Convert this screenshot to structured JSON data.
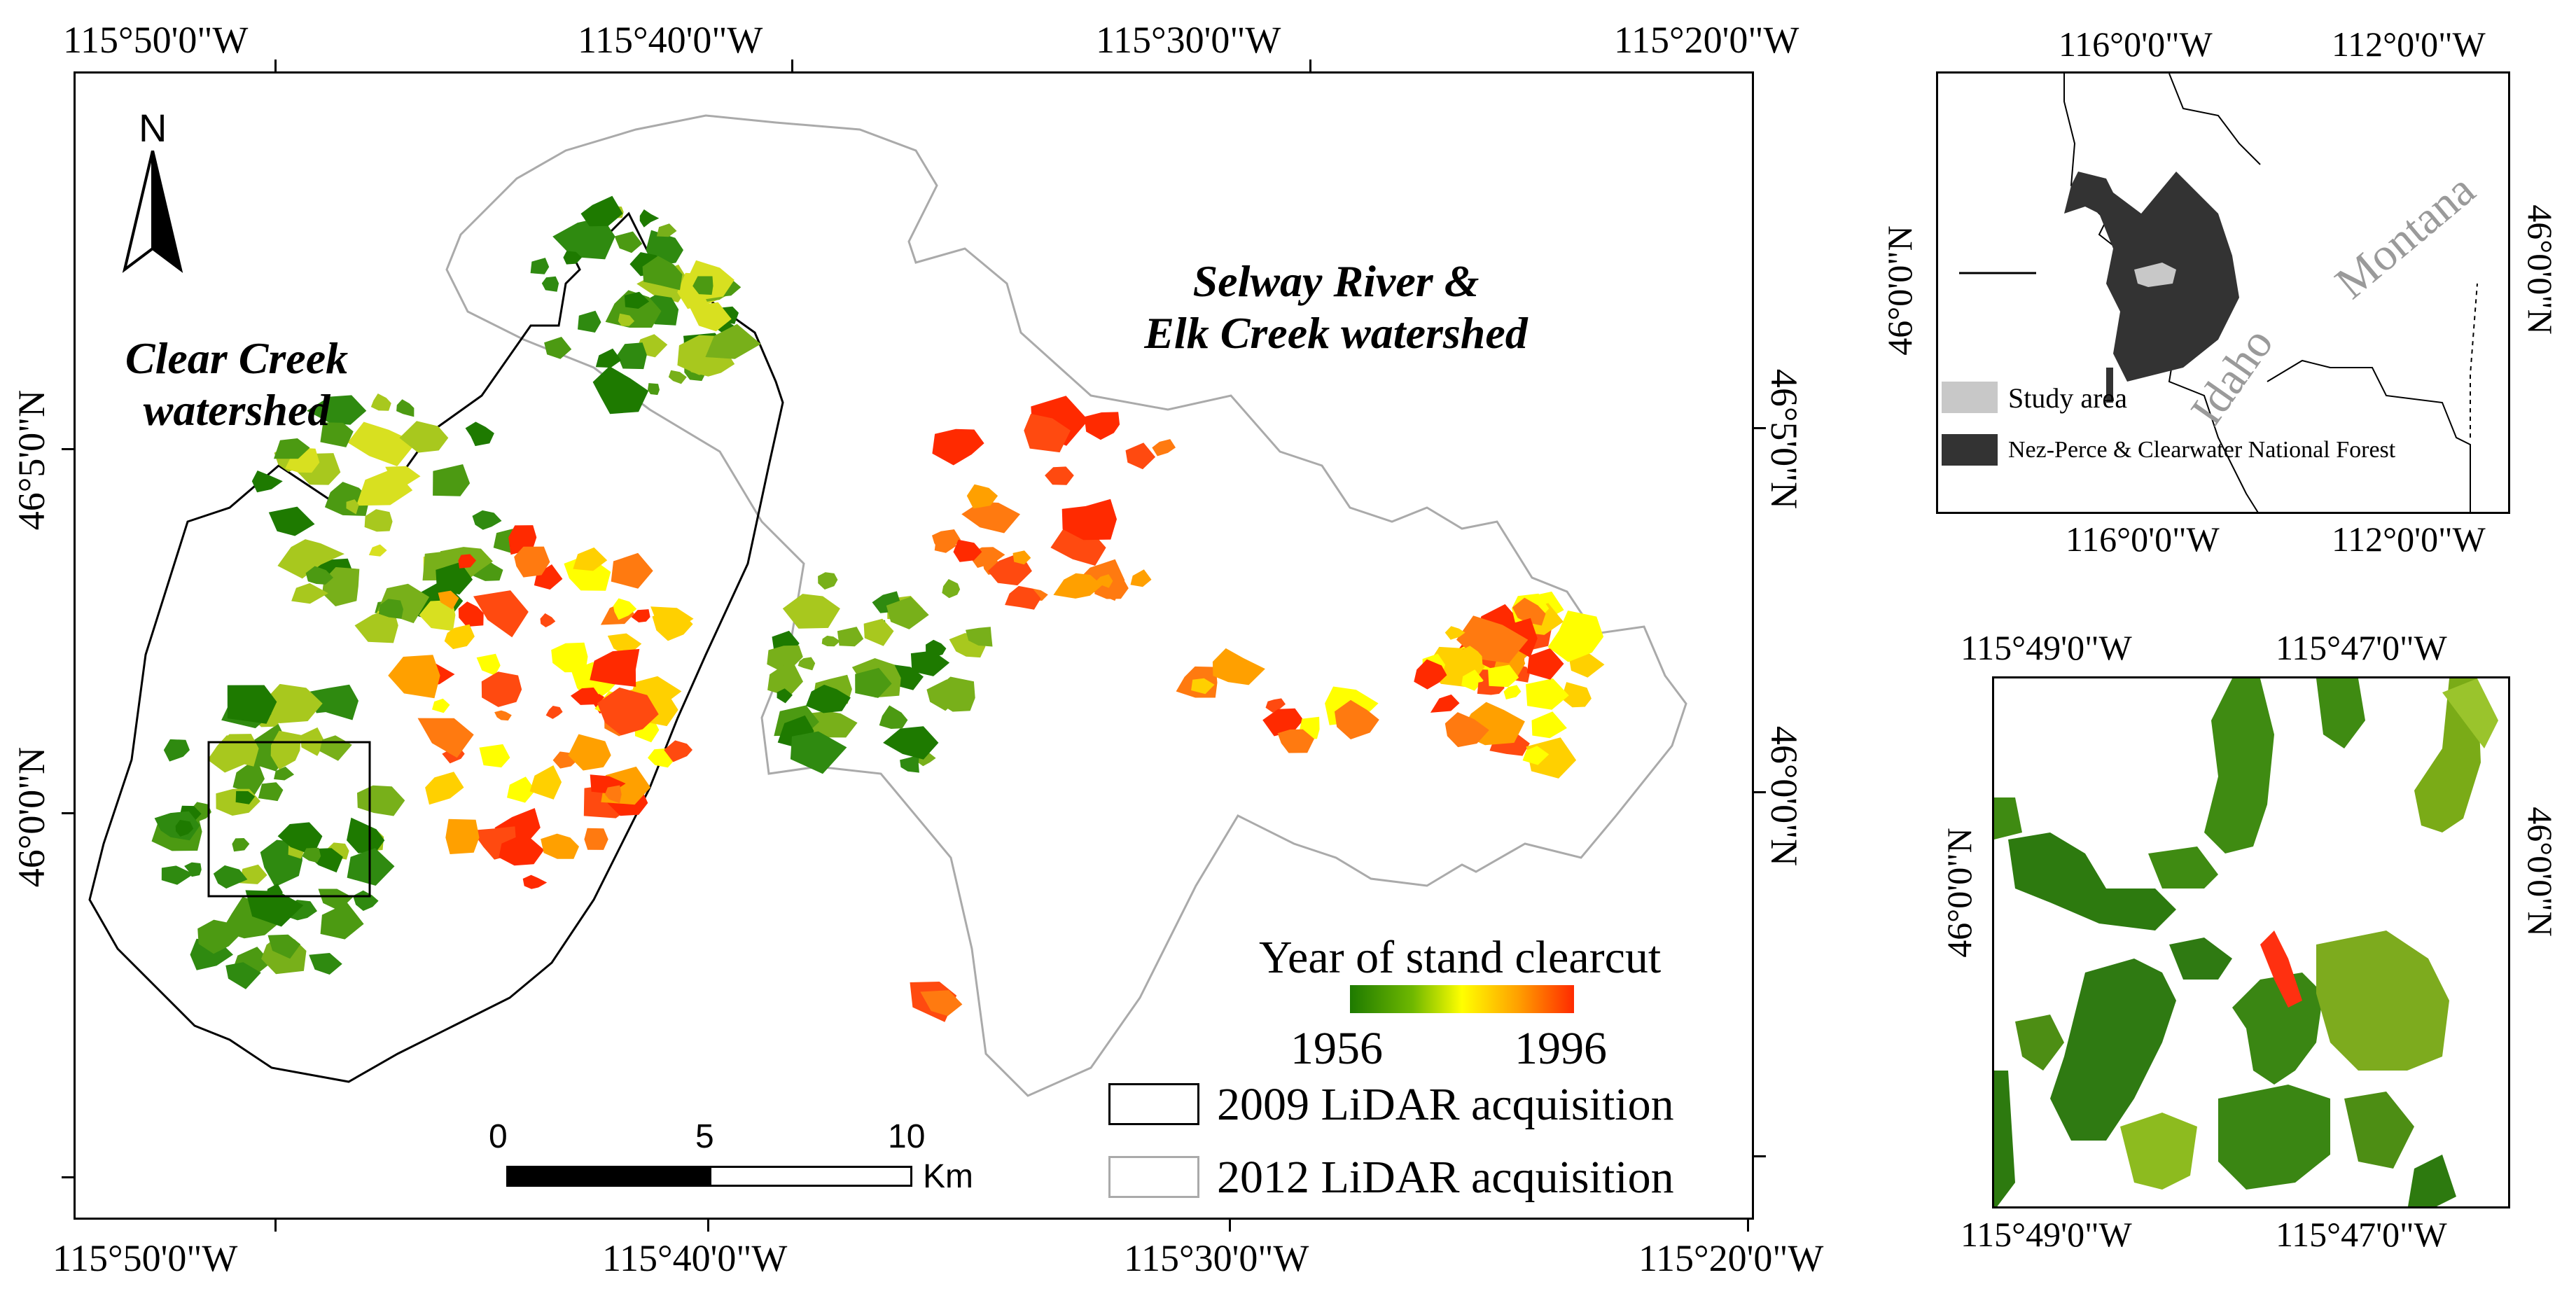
{
  "main_map": {
    "top_lon_labels": [
      "115°50'0\"W",
      "115°40'0\"W",
      "115°30'0\"W",
      "115°20'0\"W"
    ],
    "bottom_lon_labels": [
      "115°50'0\"W",
      "115°40'0\"W",
      "115°30'0\"W",
      "115°20'0\"W"
    ],
    "left_lat_labels": [
      "46°5'0\"N",
      "46°0'0\"N"
    ],
    "right_lat_labels": [
      "46°5'0\"N",
      "46°0'0\"N"
    ],
    "north_arrow_label": "N",
    "clear_creek_label": "Clear Creek\nwatershed",
    "selway_label": "Selway River &\nElk Creek watershed",
    "colorbar_title": "Year of stand clearcut",
    "colorbar_min": "1956",
    "colorbar_max": "1996",
    "colorbar_colors": [
      "#1e7a00",
      "#ffff00",
      "#ff2a00"
    ],
    "legend_2009": "2009 LiDAR acquisition",
    "legend_2012": "2012 LiDAR acquisition",
    "scale_ticks": [
      "0",
      "5",
      "10"
    ],
    "scale_unit": "Km"
  },
  "locator_map": {
    "top_lon_labels": [
      "116°0'0\"W",
      "112°0'0\"W"
    ],
    "bottom_lon_labels": [
      "116°0'0\"W",
      "112°0'0\"W"
    ],
    "left_lat_label": "46°0'0\"N",
    "right_lat_label": "46°0'0\"N",
    "state_montana": "Montana",
    "state_idaho": "Idaho",
    "legend_study_area": "Study area",
    "legend_forest": "Nez-Perce & Clearwater National Forest"
  },
  "detail_map": {
    "top_lon_labels": [
      "115°49'0\"W",
      "115°47'0\"W"
    ],
    "bottom_lon_labels": [
      "115°49'0\"W",
      "115°47'0\"W"
    ],
    "left_lat_label": "46°0'0\"N",
    "right_lat_label": "46°0'0\"N"
  }
}
